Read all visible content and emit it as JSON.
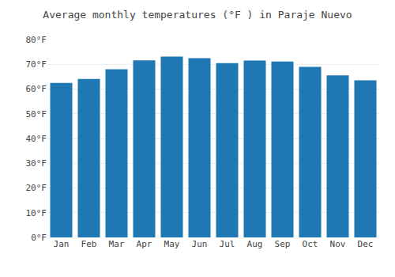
{
  "chart_data": {
    "type": "bar",
    "title": "Average monthly temperatures (°F ) in Paraje Nuevo",
    "categories": [
      "Jan",
      "Feb",
      "Mar",
      "Apr",
      "May",
      "Jun",
      "Jul",
      "Aug",
      "Sep",
      "Oct",
      "Nov",
      "Dec"
    ],
    "values": [
      62.5,
      64.1,
      68.0,
      71.6,
      73.1,
      72.5,
      70.5,
      71.5,
      71.1,
      69.0,
      65.5,
      63.5
    ],
    "ylim": [
      0,
      80
    ],
    "yticks": [
      {
        "value": 0,
        "label": "0°F"
      },
      {
        "value": 10,
        "label": "10°F"
      },
      {
        "value": 20,
        "label": "20°F"
      },
      {
        "value": 30,
        "label": "30°F"
      },
      {
        "value": 40,
        "label": "40°F"
      },
      {
        "value": 50,
        "label": "50°F"
      },
      {
        "value": 60,
        "label": "60°F"
      },
      {
        "value": 70,
        "label": "70°F"
      },
      {
        "value": 80,
        "label": "80°F"
      }
    ],
    "grid": true
  }
}
